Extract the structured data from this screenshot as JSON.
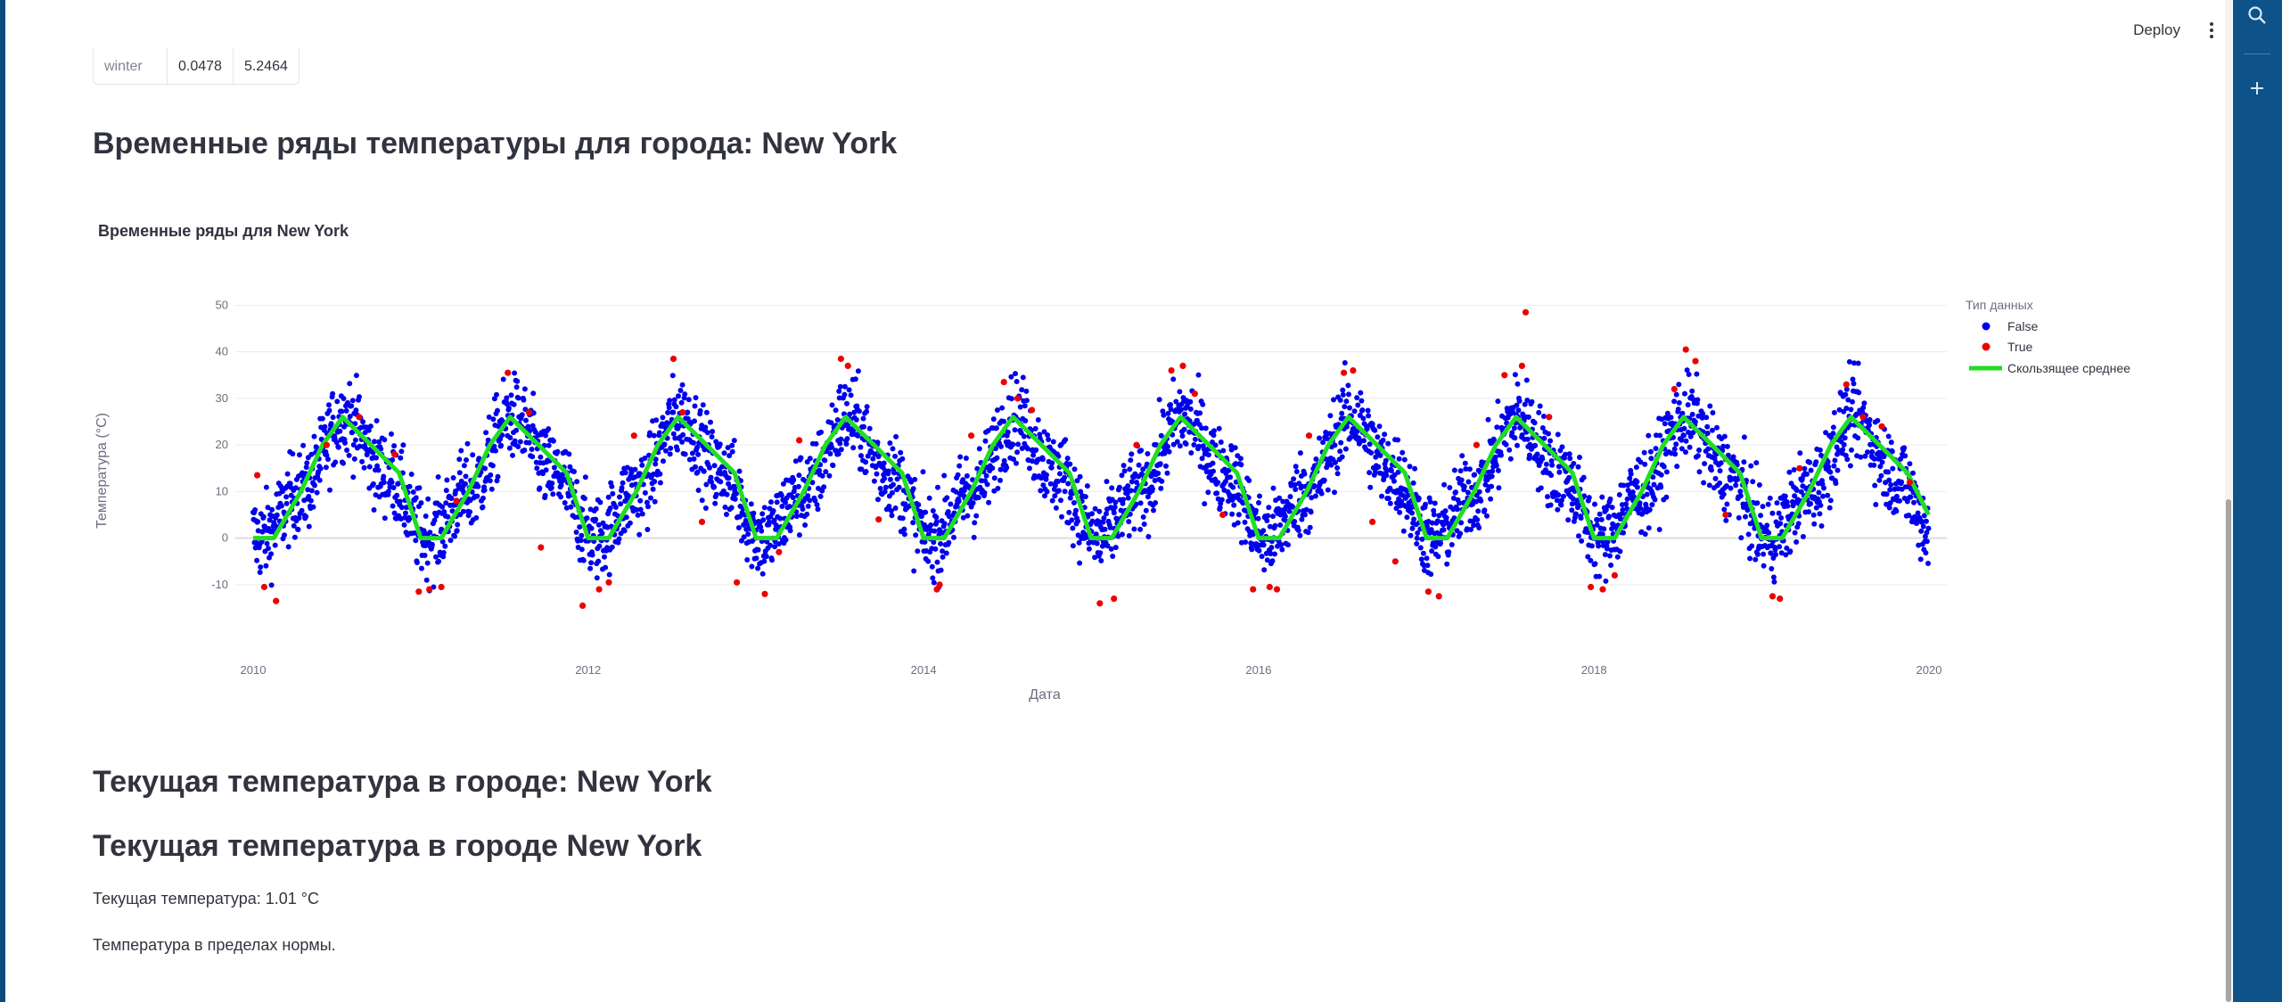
{
  "toolbar": {
    "deploy_label": "Deploy"
  },
  "stats_table": {
    "rows": [
      {
        "index": "winter",
        "values": [
          "0.0478",
          "5.2464"
        ]
      }
    ]
  },
  "headers": {
    "timeseries": "Временные ряды температуры для города: New York",
    "current1": "Текущая температура в городе: New York",
    "current2": "Текущая температура в городе New York"
  },
  "current": {
    "temperature_text": "Текущая температура: 1.01 °C",
    "status_text": "Температура в пределах нормы."
  },
  "chart_data": {
    "type": "scatter",
    "title": "Временные ряды для New York",
    "xlabel": "Дата",
    "ylabel": "Температура (°C)",
    "x_range": [
      "2010-01-01",
      "2020-01-01"
    ],
    "ylim": [
      -15,
      52
    ],
    "x_ticks": [
      "2010",
      "2012",
      "2014",
      "2016",
      "2018",
      "2020"
    ],
    "y_ticks": [
      -10,
      0,
      10,
      20,
      30,
      40,
      50
    ],
    "grid": true,
    "legend_title": "Тип данных",
    "legend_position": "top-right",
    "series": [
      {
        "name": "False",
        "color": "#0000ee",
        "mode": "markers",
        "seasonal_profile": {
          "winter": 0,
          "spring": 10,
          "summer": 26,
          "autumn": 14
        },
        "approx_points": 3650
      },
      {
        "name": "True",
        "color": "#ee0000",
        "mode": "markers",
        "x": [
          "2010-01-10",
          "2010-01-25",
          "2010-02-20",
          "2010-06-10",
          "2010-08-20",
          "2010-11-05",
          "2010-12-28",
          "2011-01-20",
          "2011-02-15",
          "2011-03-20",
          "2011-07-10",
          "2011-08-25",
          "2011-09-20",
          "2011-12-20",
          "2012-01-25",
          "2012-02-15",
          "2012-04-10",
          "2012-07-05",
          "2012-07-25",
          "2012-09-05",
          "2012-11-20",
          "2013-01-20",
          "2013-02-20",
          "2013-04-05",
          "2013-07-05",
          "2013-07-20",
          "2013-09-25",
          "2014-01-30",
          "2014-02-05",
          "2014-04-15",
          "2014-06-25",
          "2014-07-25",
          "2014-08-25",
          "2015-01-20",
          "2015-02-20",
          "2015-04-10",
          "2015-06-25",
          "2015-07-20",
          "2015-08-15",
          "2015-10-15",
          "2015-12-20",
          "2016-01-25",
          "2016-02-10",
          "2016-04-20",
          "2016-07-05",
          "2016-07-25",
          "2016-09-05",
          "2016-10-25",
          "2017-01-05",
          "2017-01-28",
          "2017-04-20",
          "2017-06-20",
          "2017-07-28",
          "2017-08-05",
          "2017-09-25",
          "2017-12-25",
          "2018-01-20",
          "2018-02-15",
          "2018-06-25",
          "2018-07-20",
          "2018-08-10",
          "2018-10-15",
          "2019-01-25",
          "2019-02-10",
          "2019-03-25",
          "2019-07-05",
          "2019-08-10",
          "2019-09-20",
          "2019-11-20"
        ],
        "y": [
          13.5,
          -10.5,
          -13.5,
          20,
          26,
          18,
          -11.5,
          -11,
          -10.5,
          8,
          35.5,
          27,
          -2,
          -14.5,
          -11,
          -9.5,
          22,
          38.5,
          27,
          3.5,
          -9.5,
          -12,
          -3,
          21,
          38.5,
          37,
          4,
          -11,
          -10,
          22,
          33.5,
          30,
          27.5,
          -14,
          -13,
          20,
          36,
          37,
          31,
          5,
          -11,
          -10.5,
          -11,
          22,
          35.5,
          36,
          3.5,
          -5,
          -11.5,
          -12.5,
          20,
          35,
          37,
          48.5,
          26,
          -10.5,
          -11,
          -8,
          32,
          40.5,
          38,
          5,
          -12.5,
          -13,
          15,
          33,
          26,
          24,
          12
        ]
      },
      {
        "name": "Скользящее среднее",
        "color": "#22dd22",
        "mode": "lines",
        "x": [
          "2010-01-01",
          "2010-02-15",
          "2010-04-15",
          "2010-06-01",
          "2010-07-15",
          "2010-09-15",
          "2010-11-15",
          "2011-01-01",
          "2011-02-15",
          "2011-04-15",
          "2011-06-01",
          "2011-07-15",
          "2011-09-15",
          "2011-11-15",
          "2012-01-01",
          "2012-02-15",
          "2012-04-15",
          "2012-06-01",
          "2012-07-15",
          "2012-09-15",
          "2012-11-15",
          "2013-01-01",
          "2013-02-15",
          "2013-04-15",
          "2013-06-01",
          "2013-07-15",
          "2013-09-15",
          "2013-11-15",
          "2014-01-01",
          "2014-02-15",
          "2014-04-15",
          "2014-06-01",
          "2014-07-15",
          "2014-09-15",
          "2014-11-15",
          "2015-01-01",
          "2015-02-15",
          "2015-04-15",
          "2015-06-01",
          "2015-07-15",
          "2015-09-15",
          "2015-11-15",
          "2016-01-01",
          "2016-02-15",
          "2016-04-15",
          "2016-06-01",
          "2016-07-15",
          "2016-09-15",
          "2016-11-15",
          "2017-01-01",
          "2017-02-15",
          "2017-04-15",
          "2017-06-01",
          "2017-07-15",
          "2017-09-15",
          "2017-11-15",
          "2018-01-01",
          "2018-02-15",
          "2018-04-15",
          "2018-06-01",
          "2018-07-15",
          "2018-09-15",
          "2018-11-15",
          "2019-01-01",
          "2019-02-15",
          "2019-04-15",
          "2019-06-01",
          "2019-07-15",
          "2019-09-15",
          "2019-11-15",
          "2019-12-31"
        ],
        "y": [
          0,
          0,
          10,
          20,
          26,
          20,
          14,
          0,
          0,
          10,
          20,
          26,
          20,
          14,
          0,
          0,
          10,
          20,
          26,
          20,
          14,
          0,
          0,
          10,
          20,
          26,
          20,
          14,
          0,
          0,
          10,
          20,
          26,
          20,
          14,
          0,
          0,
          10,
          20,
          26,
          20,
          14,
          0,
          0,
          10,
          20,
          26,
          20,
          14,
          0,
          0,
          10,
          20,
          26,
          20,
          14,
          0,
          0,
          10,
          20,
          26,
          20,
          14,
          0,
          0,
          10,
          20,
          26,
          20,
          14,
          5
        ]
      }
    ]
  }
}
